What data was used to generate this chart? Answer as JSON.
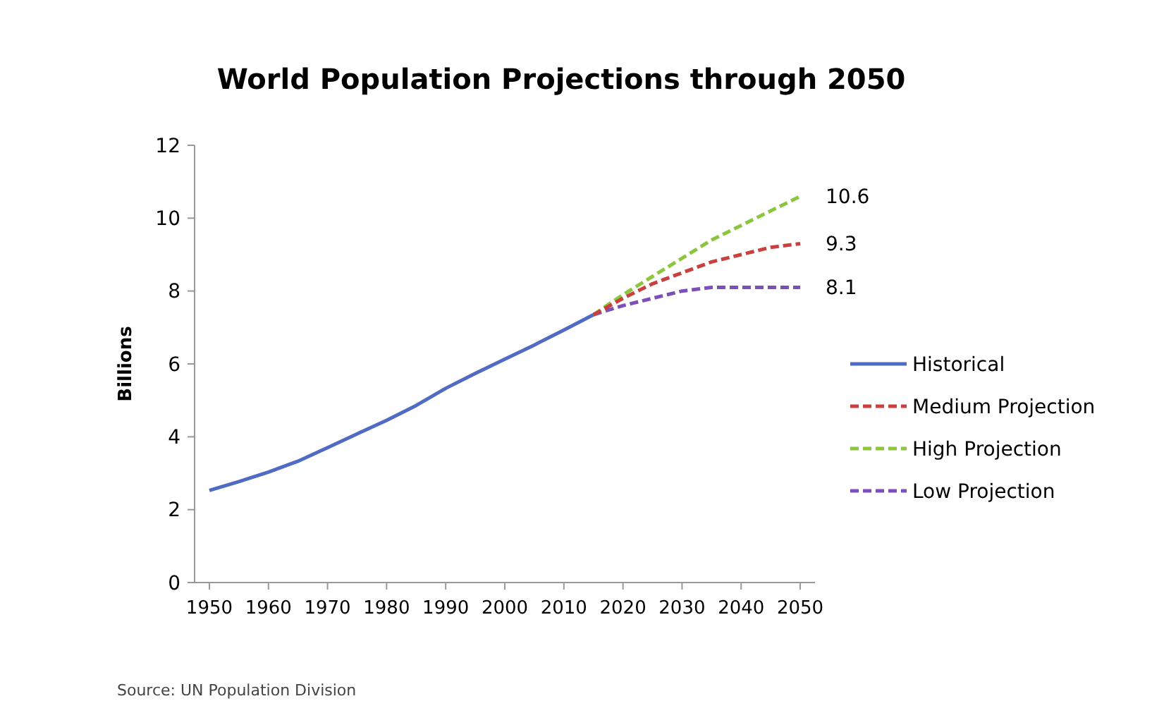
{
  "chart_data": {
    "type": "line",
    "title": "World Population Projections through 2050",
    "ylabel": "Billions",
    "xlim": [
      1947.5,
      2052.5
    ],
    "xticks": [
      1950,
      1960,
      1970,
      1980,
      1990,
      2000,
      2010,
      2020,
      2030,
      2040,
      2050
    ],
    "ylim": [
      0,
      12
    ],
    "yticks": [
      0,
      2,
      4,
      6,
      8,
      10,
      12
    ],
    "grid": false,
    "legend": "right",
    "marker": "none",
    "series": [
      {
        "name": "Historical",
        "color": "#4f6bc4",
        "line_style": "solid",
        "x": [
          1950,
          1955,
          1960,
          1965,
          1970,
          1975,
          1980,
          1985,
          1990,
          1995,
          2000,
          2005,
          2010,
          2015
        ],
        "values": [
          2.53,
          2.77,
          3.03,
          3.33,
          3.7,
          4.08,
          4.45,
          4.86,
          5.33,
          5.74,
          6.13,
          6.52,
          6.93,
          7.35
        ]
      },
      {
        "name": "Medium Projection",
        "color": "#c9413e",
        "line_style": "dashed",
        "x": [
          2015,
          2020,
          2025,
          2030,
          2035,
          2040,
          2045,
          2050
        ],
        "values": [
          7.35,
          7.8,
          8.2,
          8.5,
          8.8,
          9.0,
          9.2,
          9.3
        ],
        "value_labels": [
          null,
          null,
          null,
          null,
          null,
          null,
          null,
          "9.3"
        ]
      },
      {
        "name": "High Projection",
        "color": "#8cc63f",
        "line_style": "dashed",
        "x": [
          2015,
          2020,
          2025,
          2030,
          2035,
          2040,
          2045,
          2050
        ],
        "values": [
          7.35,
          7.9,
          8.4,
          8.9,
          9.4,
          9.8,
          10.2,
          10.6
        ],
        "value_labels": [
          null,
          null,
          null,
          null,
          null,
          null,
          null,
          "10.6"
        ]
      },
      {
        "name": "Low Projection",
        "color": "#7d4fb8",
        "line_style": "dashed",
        "x": [
          2015,
          2020,
          2025,
          2030,
          2035,
          2040,
          2045,
          2050
        ],
        "values": [
          7.35,
          7.6,
          7.8,
          8.0,
          8.1,
          8.1,
          8.1,
          8.1
        ],
        "value_labels": [
          null,
          null,
          null,
          null,
          null,
          null,
          null,
          "8.1"
        ]
      }
    ],
    "annotations": [
      "Source: UN Population Division"
    ]
  }
}
